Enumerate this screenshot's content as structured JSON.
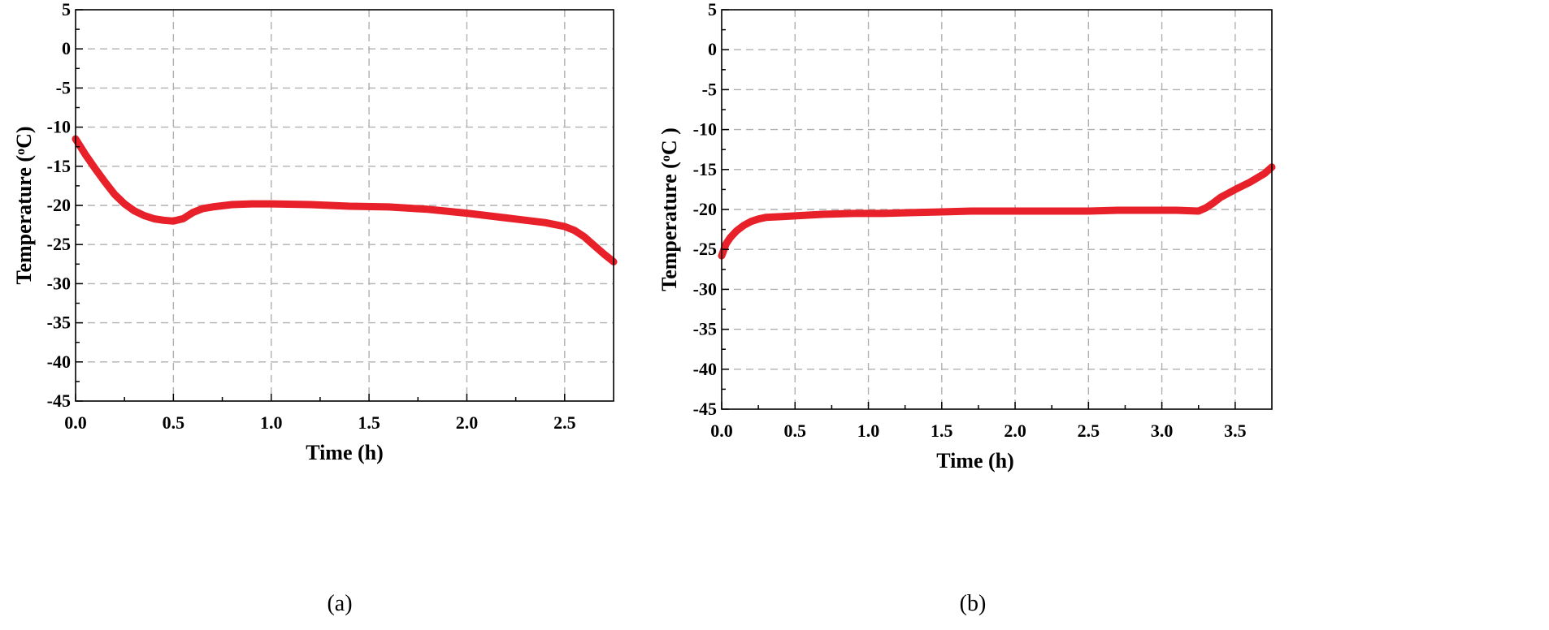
{
  "chart_data": [
    {
      "type": "line",
      "panel_label": "(a)",
      "xlabel": "Time (h)",
      "ylabel_main": "Temperature (",
      "ylabel_sup": "o",
      "ylabel_end": "C)",
      "xlim": [
        0,
        2.75
      ],
      "ylim": [
        -45,
        5
      ],
      "xticks": [
        0.0,
        0.5,
        1.0,
        1.5,
        2.0,
        2.5
      ],
      "xtick_labels": [
        "0.0",
        "0.5",
        "1.0",
        "1.5",
        "2.0",
        "2.5"
      ],
      "yticks": [
        5,
        0,
        -5,
        -10,
        -15,
        -20,
        -25,
        -30,
        -35,
        -40,
        -45
      ],
      "ytick_labels": [
        "5",
        "0",
        "-5",
        "-10",
        "-15",
        "-20",
        "-25",
        "-30",
        "-35",
        "-40",
        "-45"
      ],
      "grid": true,
      "series": [
        {
          "color": "#e8202a",
          "x": [
            0.0,
            0.05,
            0.1,
            0.15,
            0.2,
            0.25,
            0.3,
            0.35,
            0.4,
            0.45,
            0.5,
            0.55,
            0.6,
            0.65,
            0.7,
            0.8,
            0.9,
            1.0,
            1.2,
            1.4,
            1.6,
            1.8,
            2.0,
            2.2,
            2.4,
            2.5,
            2.55,
            2.6,
            2.65,
            2.7,
            2.75
          ],
          "y": [
            -11.5,
            -13.5,
            -15.3,
            -17.0,
            -18.6,
            -19.8,
            -20.7,
            -21.3,
            -21.7,
            -21.9,
            -22.0,
            -21.7,
            -20.9,
            -20.4,
            -20.2,
            -19.9,
            -19.8,
            -19.8,
            -19.9,
            -20.1,
            -20.2,
            -20.5,
            -21.0,
            -21.6,
            -22.2,
            -22.7,
            -23.2,
            -24.0,
            -25.1,
            -26.2,
            -27.2
          ]
        }
      ]
    },
    {
      "type": "line",
      "panel_label": "(b)",
      "xlabel": "Time (h)",
      "ylabel_main": "Temperature (",
      "ylabel_sup": "o",
      "ylabel_end": "C )",
      "xlim": [
        0,
        3.75
      ],
      "ylim": [
        -45,
        5
      ],
      "xticks": [
        0.0,
        0.5,
        1.0,
        1.5,
        2.0,
        2.5,
        3.0,
        3.5
      ],
      "xtick_labels": [
        "0.0",
        "0.5",
        "1.0",
        "1.5",
        "2.0",
        "2.5",
        "3.0",
        "3.5"
      ],
      "yticks": [
        5,
        0,
        -5,
        -10,
        -15,
        -20,
        -25,
        -30,
        -35,
        -40,
        -45
      ],
      "ytick_labels": [
        "5",
        "0",
        "-5",
        "-10",
        "-15",
        "-20",
        "-25",
        "-30",
        "-35",
        "-40",
        "-45"
      ],
      "grid": true,
      "series": [
        {
          "color": "#e8202a",
          "x": [
            0.0,
            0.03,
            0.06,
            0.1,
            0.15,
            0.2,
            0.25,
            0.3,
            0.4,
            0.5,
            0.7,
            0.9,
            1.1,
            1.3,
            1.5,
            1.7,
            1.9,
            2.1,
            2.3,
            2.5,
            2.7,
            2.9,
            3.1,
            3.25,
            3.3,
            3.35,
            3.4,
            3.5,
            3.6,
            3.7,
            3.75
          ],
          "y": [
            -25.8,
            -24.3,
            -23.5,
            -22.7,
            -22.0,
            -21.5,
            -21.2,
            -21.0,
            -20.9,
            -20.8,
            -20.6,
            -20.5,
            -20.5,
            -20.4,
            -20.3,
            -20.2,
            -20.2,
            -20.2,
            -20.2,
            -20.2,
            -20.1,
            -20.1,
            -20.1,
            -20.2,
            -19.8,
            -19.2,
            -18.5,
            -17.5,
            -16.6,
            -15.5,
            -14.7
          ]
        }
      ]
    }
  ]
}
